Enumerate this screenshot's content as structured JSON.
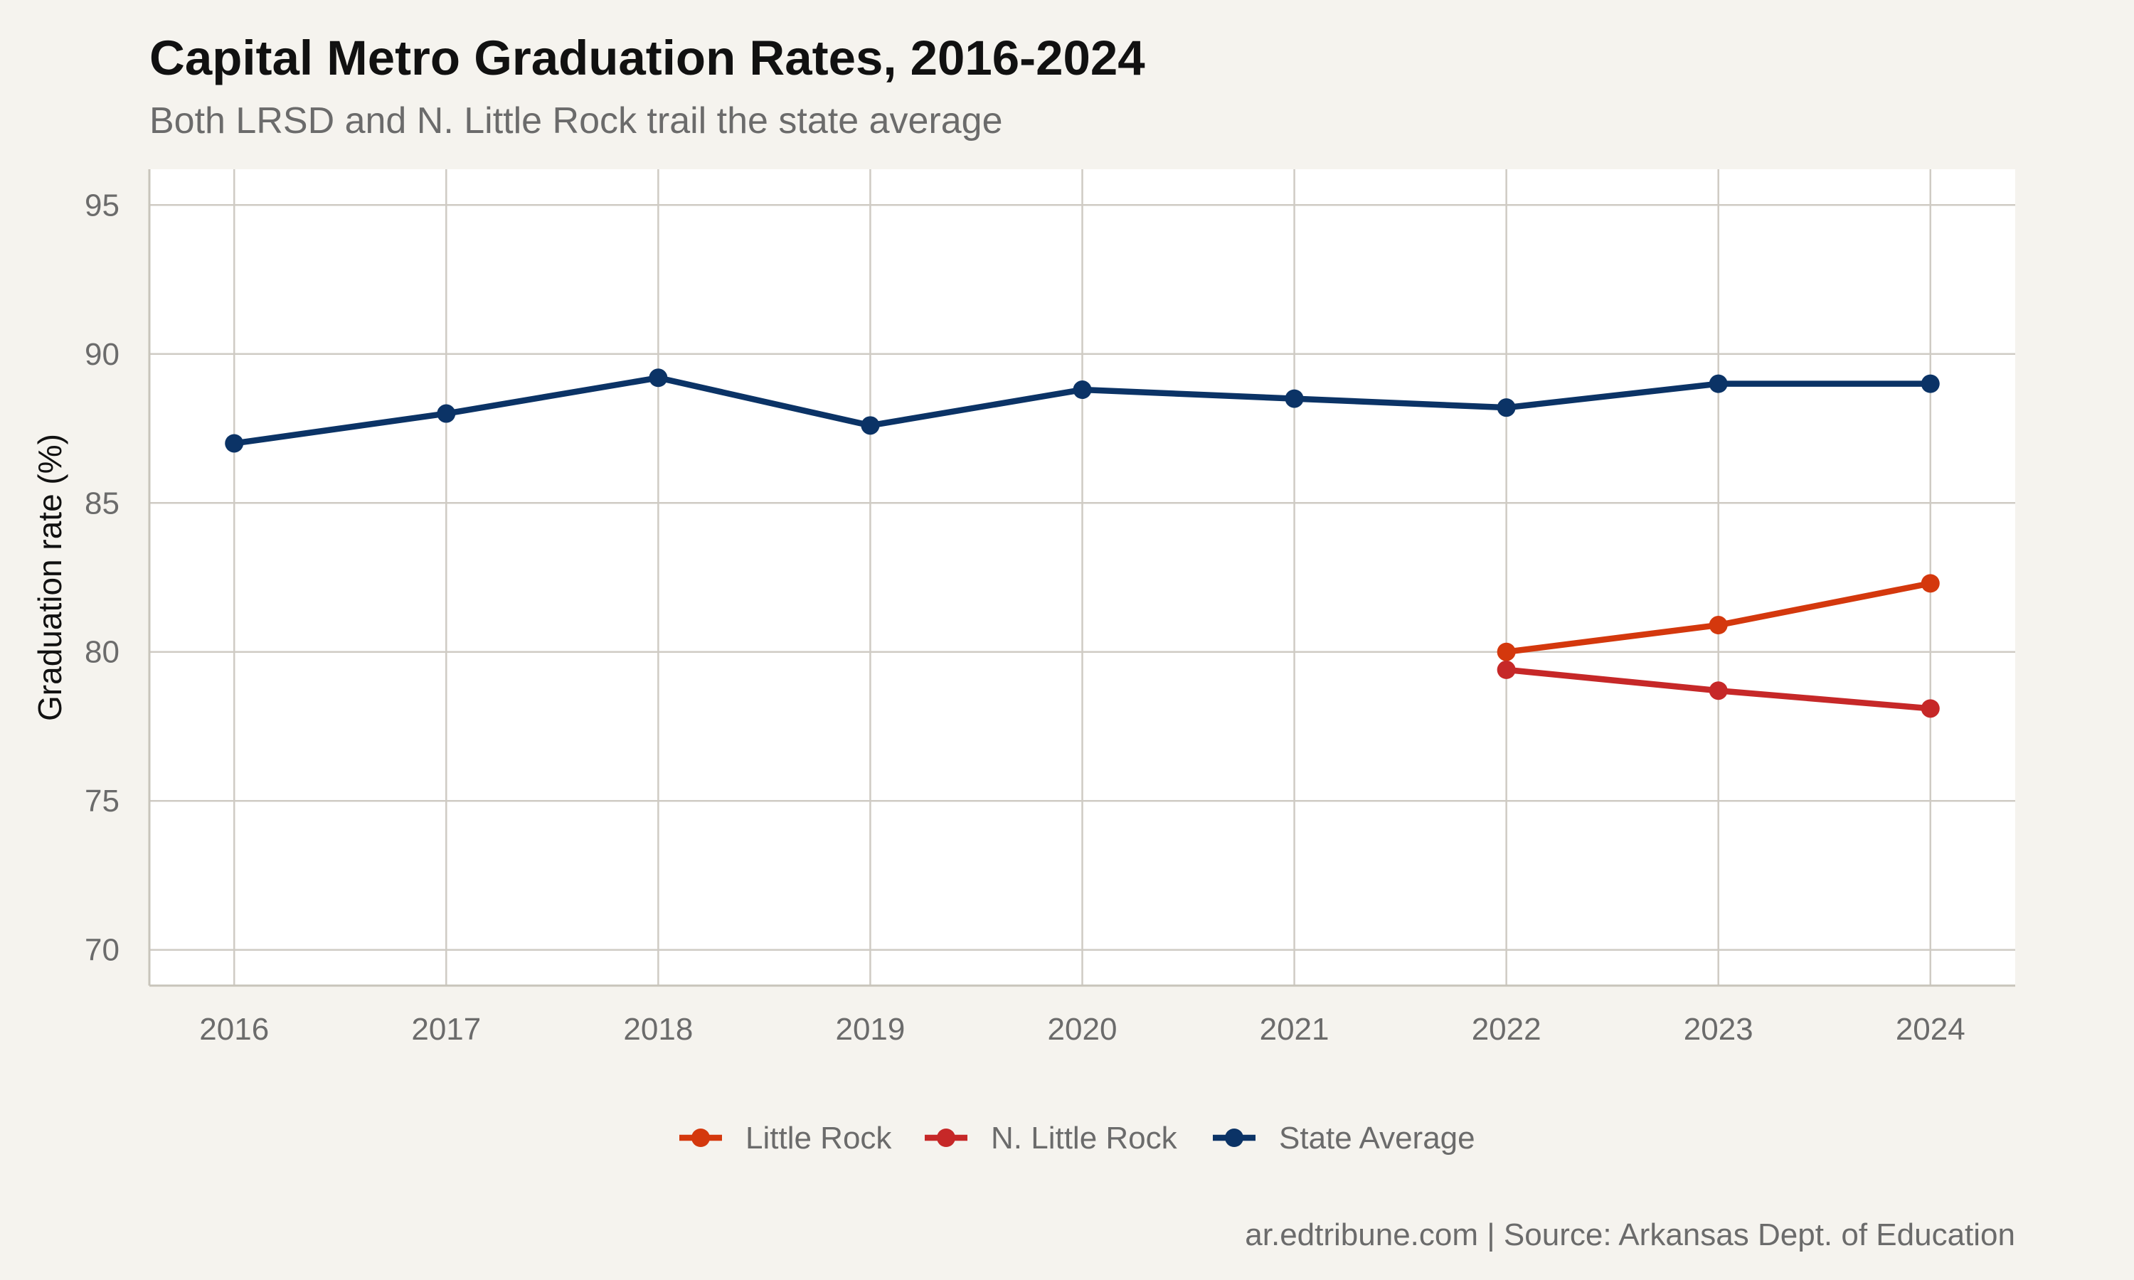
{
  "chart_data": {
    "type": "line",
    "title": "Capital Metro Graduation Rates, 2016-2024",
    "subtitle": "Both LRSD and N. Little Rock trail the state average",
    "caption": "ar.edtribune.com | Source: Arkansas Dept. of Education",
    "xlabel": "",
    "ylabel": "Graduation rate (%)",
    "x": [
      2016,
      2017,
      2018,
      2019,
      2020,
      2021,
      2022,
      2023,
      2024
    ],
    "xlim": [
      2015.6,
      2024.4
    ],
    "ylim": [
      68.8,
      96.2
    ],
    "yticks": [
      70,
      75,
      80,
      85,
      90,
      95
    ],
    "grid": true,
    "legend_position": "bottom",
    "series": [
      {
        "name": "Little Rock",
        "color": "#d4380d",
        "x": [
          2022,
          2023,
          2024
        ],
        "values": [
          80.0,
          80.9,
          82.3
        ]
      },
      {
        "name": "N. Little Rock",
        "color": "#c62828",
        "x": [
          2022,
          2023,
          2024
        ],
        "values": [
          79.4,
          78.7,
          78.1
        ]
      },
      {
        "name": "State Average",
        "color": "#0b3366",
        "x": [
          2016,
          2017,
          2018,
          2019,
          2020,
          2021,
          2022,
          2023,
          2024
        ],
        "values": [
          87.0,
          88.0,
          89.2,
          87.6,
          88.8,
          88.5,
          88.2,
          89.0,
          89.0
        ]
      }
    ]
  }
}
